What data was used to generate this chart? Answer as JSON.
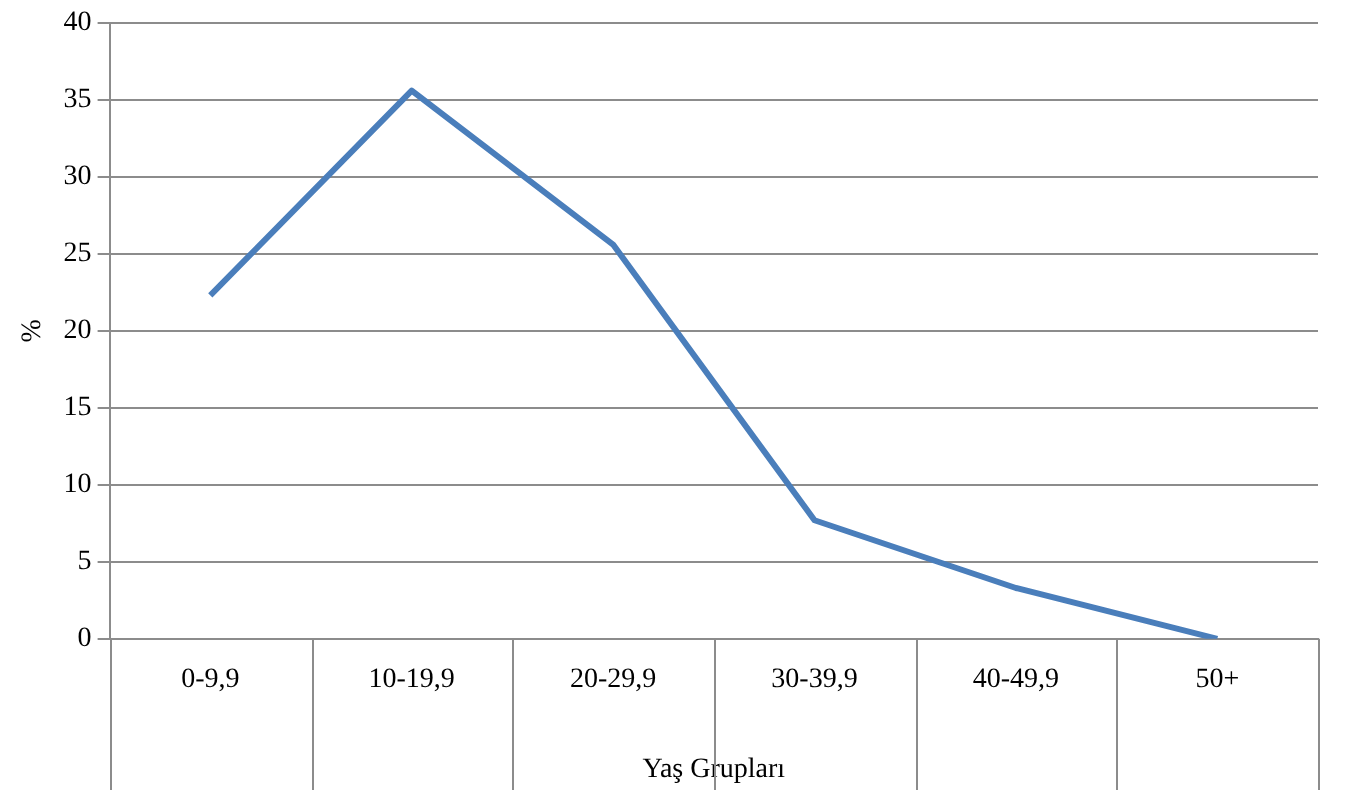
{
  "chart_data": {
    "type": "line",
    "xlabel": "Yaş Grupları",
    "ylabel": "%",
    "categories": [
      "0-9,9",
      "10-19,9",
      "20-29,9",
      "30-39,9",
      "40-49,9",
      "50+"
    ],
    "series": [
      {
        "color": "#4a7ebb",
        "values": [
          22.3,
          35.6,
          25.6,
          7.7,
          3.3,
          0
        ]
      }
    ],
    "ylim": [
      0,
      40
    ],
    "yticks": [
      0,
      5,
      10,
      15,
      20,
      25,
      30,
      35,
      40
    ],
    "grid": "y",
    "legend": false,
    "marker": "none",
    "line_style": "solid"
  }
}
